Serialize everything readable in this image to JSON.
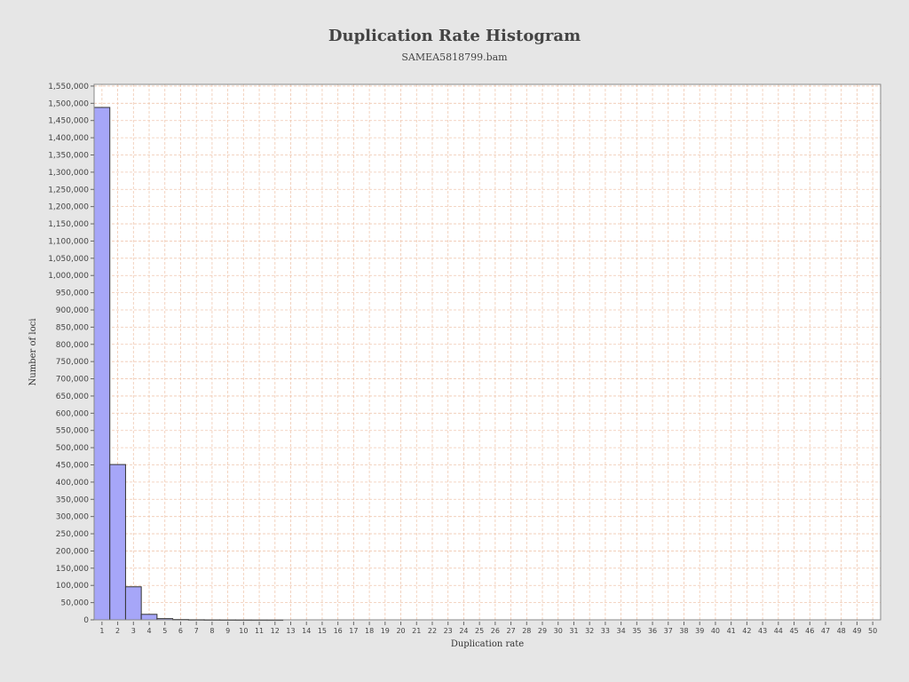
{
  "chart_data": {
    "type": "bar",
    "title": "Duplication Rate Histogram",
    "subtitle": "SAMEA5818799.bam",
    "xlabel": "Duplication rate",
    "ylabel": "Number of loci",
    "xlim": [
      0.5,
      50.5
    ],
    "ylim": [
      0,
      1555000
    ],
    "y_tick_step": 50000,
    "grid": true,
    "colors": {
      "bar_fill": "#a6a6f8",
      "bar_stroke": "#333333",
      "grid": "#f0c8b0",
      "plot_bg": "#ffffff"
    },
    "categories": [
      1,
      2,
      3,
      4,
      5,
      6,
      7,
      8,
      9,
      10,
      11,
      12,
      13,
      14,
      15,
      16,
      17,
      18,
      19,
      20,
      21,
      22,
      23,
      24,
      25,
      26,
      27,
      28,
      29,
      30,
      31,
      32,
      33,
      34,
      35,
      36,
      37,
      38,
      39,
      40,
      41,
      42,
      43,
      44,
      45,
      46,
      47,
      48,
      49,
      50
    ],
    "values": [
      1488000,
      451000,
      96000,
      16000,
      3500,
      1200,
      600,
      350,
      250,
      180,
      130,
      90,
      0,
      0,
      0,
      0,
      0,
      0,
      0,
      0,
      0,
      0,
      0,
      0,
      0,
      0,
      0,
      0,
      0,
      0,
      0,
      0,
      0,
      0,
      0,
      0,
      0,
      0,
      0,
      0,
      0,
      0,
      0,
      0,
      0,
      0,
      0,
      0,
      0,
      0
    ]
  }
}
